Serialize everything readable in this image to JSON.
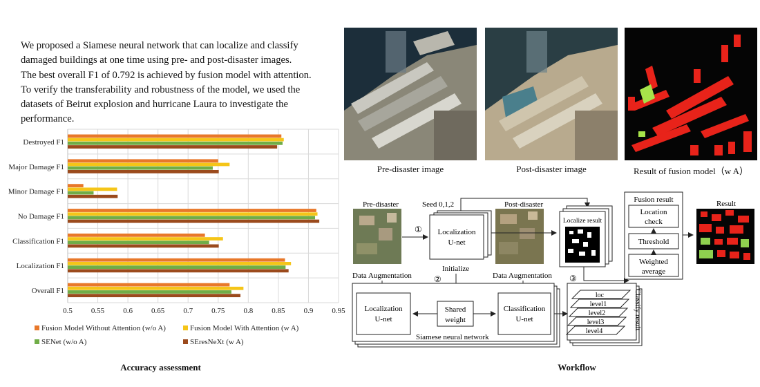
{
  "abstract": {
    "lines": [
      "We proposed a Siamese neural network that can localize and classify",
      "damaged buildings at one time using pre- and post-disaster images.",
      "The best overall F1 of 0.792 is achieved by fusion model with attention.",
      "To verify the transferability and robustness of the model, we used the",
      "datasets of Beirut explosion and hurricane Laura to investigate the",
      "performance."
    ]
  },
  "images": {
    "pre_caption": "Pre-disaster image",
    "post_caption": "Post-disaster image",
    "result_caption": "Result of fusion model（w A）"
  },
  "chart_caption": "Accuracy assessment",
  "workflow_caption": "Workflow",
  "colors": {
    "fusion_wo": "#e8782a",
    "fusion_w": "#f5c518",
    "senet": "#70ad47",
    "seresnext": "#9b4a1c"
  },
  "chart_data": {
    "type": "bar",
    "orientation": "horizontal",
    "categories": [
      "Destroyed F1",
      "Major Damage F1",
      "Minor Damage F1",
      "No Damage F1",
      "Classification F1",
      "Localization F1",
      "Overall F1"
    ],
    "series": [
      {
        "name": "Fusion Model Without Attention (w/o A)",
        "values": [
          0.855,
          0.75,
          0.526,
          0.913,
          0.728,
          0.861,
          0.769
        ]
      },
      {
        "name": "Fusion Model With Attention (w A)",
        "values": [
          0.859,
          0.769,
          0.582,
          0.915,
          0.758,
          0.871,
          0.792
        ]
      },
      {
        "name": "SENet (w/o A)",
        "values": [
          0.857,
          0.741,
          0.543,
          0.911,
          0.735,
          0.862,
          0.772
        ]
      },
      {
        "name": "SEresNeXt (w A)",
        "values": [
          0.848,
          0.751,
          0.583,
          0.918,
          0.751,
          0.867,
          0.787
        ]
      }
    ],
    "xlim": [
      0.5,
      0.95
    ],
    "ticks": [
      "0.5",
      "0.55",
      "0.6",
      "0.65",
      "0.7",
      "0.75",
      "0.8",
      "0.85",
      "0.9",
      "0.95"
    ],
    "grid": true,
    "legend_position": "bottom"
  },
  "workflow": {
    "pre_disaster": "Pre-disaster",
    "post_disaster": "Post-disaster",
    "seed": "Seed 0,1,2",
    "step1": "①",
    "step2": "②",
    "step3": "③",
    "loc_unet": [
      "Localization",
      "U-net"
    ],
    "initialize": "Initialize",
    "data_aug_left": "Data Augmentation",
    "data_aug_right": "Data Augmentation",
    "shared_weight": [
      "Shared",
      "weight"
    ],
    "class_unet": [
      "Classification",
      "U-net"
    ],
    "siamese": "Siamese neural network",
    "localize_result": "Localize result",
    "classify_result": "Classify result",
    "levels": [
      "loc",
      "level1",
      "level2",
      "level3",
      "level4"
    ],
    "fusion_result": "Fusion result",
    "location_check": [
      "Location",
      "check"
    ],
    "threshold": "Threshold",
    "weighted_average": [
      "Weighted",
      "average"
    ],
    "result": "Result"
  }
}
